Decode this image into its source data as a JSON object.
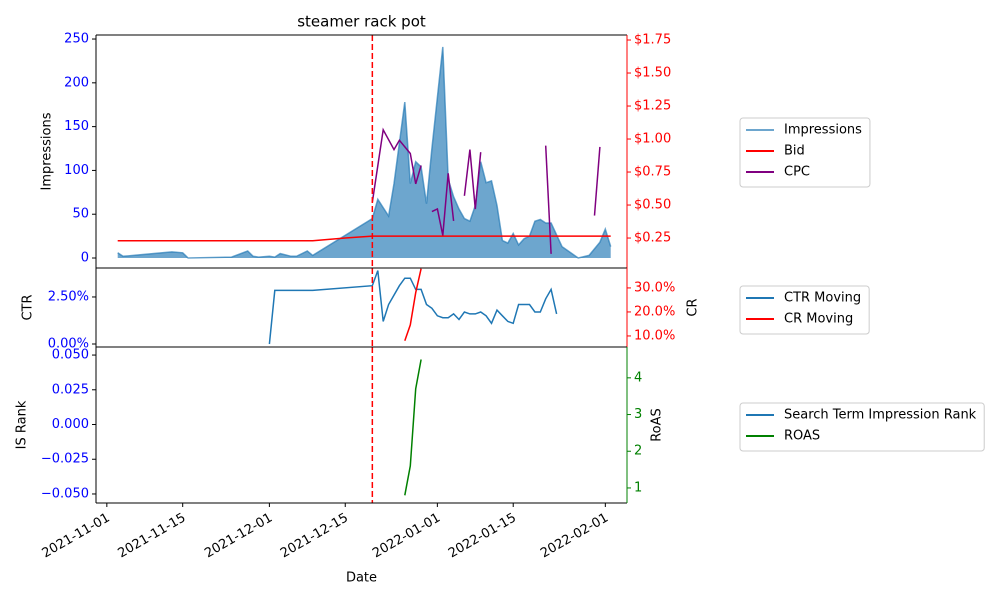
{
  "chart_data": [
    {
      "type": "line",
      "title": "steamer rack pot",
      "ylabel": "Impressions",
      "xlim": [
        "2021-10-30",
        "2022-02-05"
      ],
      "vline": "2021-12-20",
      "ylim": [
        -11.4,
        254.6
      ],
      "yticks": [
        0,
        50,
        100,
        150,
        200,
        250
      ],
      "ytick_color": "blue",
      "y2lim": [
        0.023,
        1.788
      ],
      "y2ticks": [
        {
          "value": 0.25,
          "label": "$0.25"
        },
        {
          "value": 0.5,
          "label": "$0.50"
        },
        {
          "value": 0.75,
          "label": "$0.75"
        },
        {
          "value": 1.0,
          "label": "$1.00"
        },
        {
          "value": 1.25,
          "label": "$1.25"
        },
        {
          "value": 1.5,
          "label": "$1.50"
        },
        {
          "value": 1.75,
          "label": "$1.75"
        }
      ],
      "y2tick_color": "red",
      "series": [
        {
          "name": "Impressions",
          "color": "#1f77b4",
          "fill": true,
          "x": [
            "2021-11-03",
            "2021-11-04",
            "2021-11-13",
            "2021-11-15",
            "2021-11-16",
            "2021-11-24",
            "2021-11-27",
            "2021-11-28",
            "2021-11-29",
            "2021-12-01",
            "2021-12-02",
            "2021-12-03",
            "2021-12-05",
            "2021-12-06",
            "2021-12-08",
            "2021-12-09",
            "2021-12-20",
            "2021-12-21",
            "2021-12-23",
            "2021-12-24",
            "2021-12-26",
            "2021-12-27",
            "2021-12-28",
            "2021-12-29",
            "2021-12-30",
            "2021-12-31",
            "2022-01-02",
            "2022-01-03",
            "2022-01-04",
            "2022-01-05",
            "2022-01-06",
            "2022-01-07",
            "2022-01-08",
            "2022-01-09",
            "2022-01-10",
            "2022-01-11",
            "2022-01-12",
            "2022-01-13",
            "2022-01-14",
            "2022-01-15",
            "2022-01-16",
            "2022-01-17",
            "2022-01-18",
            "2022-01-19",
            "2022-01-20",
            "2022-01-21",
            "2022-01-22",
            "2022-01-24",
            "2022-01-27",
            "2022-01-29",
            "2022-01-31",
            "2022-02-01",
            "2022-02-02"
          ],
          "values": [
            6,
            2,
            7,
            6,
            0,
            1,
            8,
            2,
            1,
            2,
            1,
            5,
            2,
            2,
            8,
            3,
            45,
            67,
            48,
            85,
            178,
            85,
            110,
            104,
            62,
            125,
            241,
            90,
            70,
            56,
            45,
            42,
            60,
            110,
            86,
            88,
            60,
            20,
            17,
            28,
            15,
            22,
            25,
            42,
            44,
            40,
            40,
            13,
            0,
            3,
            18,
            33,
            13
          ]
        },
        {
          "name": "Bid",
          "color": "red",
          "axis": "y2",
          "x": [
            "2021-11-03",
            "2021-12-09",
            "2021-12-15",
            "2021-12-20",
            "2022-02-02"
          ],
          "values": [
            0.23,
            0.23,
            0.25,
            0.265,
            0.265
          ]
        },
        {
          "name": "CPC",
          "color": "purple",
          "axis": "y2",
          "x": [
            "2021-12-20",
            "2021-12-22",
            "2021-12-24",
            "2021-12-25",
            "2021-12-27",
            "2021-12-28",
            "2021-12-29",
            "2021-12-30",
            "2021-12-31",
            "2022-01-01",
            "2022-01-02",
            "2022-01-03",
            "2022-01-04",
            "2022-01-05",
            "2022-01-06",
            "2022-01-07",
            "2022-01-08",
            "2022-01-09",
            "2022-01-10",
            "2022-01-21",
            "2022-01-22",
            "2022-01-23",
            "2022-01-30",
            "2022-01-31"
          ],
          "values": [
            0.52,
            1.07,
            0.92,
            0.99,
            0.89,
            0.66,
            0.8,
            null,
            0.45,
            0.47,
            0.27,
            0.74,
            0.38,
            null,
            0.57,
            0.92,
            0.47,
            0.9,
            null,
            0.95,
            0.13,
            null,
            0.42,
            0.94
          ]
        }
      ]
    },
    {
      "type": "line",
      "ylabel": "CTR",
      "y2label": "CR",
      "xlim": [
        "2021-10-30",
        "2022-02-05"
      ],
      "vline": "2021-12-20",
      "ylim": [
        -0.16,
        4.04
      ],
      "yticks": [
        {
          "value": 0,
          "label": "0.00%"
        },
        {
          "value": 2.5,
          "label": "2.50%"
        }
      ],
      "ytick_color": "blue",
      "y2lim": [
        5.4,
        38.3
      ],
      "y2ticks": [
        {
          "value": 10,
          "label": "10.0%"
        },
        {
          "value": 20,
          "label": "20.0%"
        },
        {
          "value": 30,
          "label": "30.0%"
        }
      ],
      "y2tick_color": "red",
      "series": [
        {
          "name": "CTR Moving",
          "color": "#1f77b4",
          "x": [
            "2021-12-01",
            "2021-12-02",
            "2021-12-09",
            "2021-12-20",
            "2021-12-21",
            "2021-12-22",
            "2021-12-23",
            "2021-12-25",
            "2021-12-26",
            "2021-12-27",
            "2021-12-28",
            "2021-12-29",
            "2021-12-30",
            "2021-12-31",
            "2022-01-01",
            "2022-01-02",
            "2022-01-03",
            "2022-01-04",
            "2022-01-05",
            "2022-01-06",
            "2022-01-07",
            "2022-01-08",
            "2022-01-09",
            "2022-01-10",
            "2022-01-11",
            "2022-01-12",
            "2022-01-13",
            "2022-01-14",
            "2022-01-15",
            "2022-01-16",
            "2022-01-17",
            "2022-01-18",
            "2022-01-19",
            "2022-01-20",
            "2022-01-21",
            "2022-01-22",
            "2022-01-23"
          ],
          "values": [
            0,
            2.85,
            2.85,
            3.1,
            3.9,
            1.2,
            2.1,
            3.1,
            3.5,
            3.5,
            2.9,
            2.9,
            2.1,
            1.9,
            1.5,
            1.4,
            1.4,
            1.6,
            1.3,
            1.7,
            1.6,
            1.6,
            1.7,
            1.5,
            1.1,
            1.8,
            1.5,
            1.2,
            1.1,
            2.1,
            2.1,
            2.1,
            1.7,
            1.7,
            2.4,
            2.9,
            1.6
          ]
        },
        {
          "name": "CR Moving",
          "color": "red",
          "axis": "y2",
          "x": [
            "2021-12-26",
            "2021-12-27",
            "2021-12-28",
            "2021-12-29"
          ],
          "values": [
            8,
            14.6,
            28,
            38
          ]
        }
      ]
    },
    {
      "type": "line",
      "ylabel": "IS Rank",
      "y2label": "RoAS",
      "xlabel": "Date",
      "xlim": [
        "2021-10-30",
        "2022-02-05"
      ],
      "vline": "2021-12-20",
      "xticks": [
        "2021-11-01",
        "2021-11-15",
        "2021-12-01",
        "2021-12-15",
        "2022-01-01",
        "2022-01-15",
        "2022-02-01"
      ],
      "ylim": [
        -0.0565,
        0.0558
      ],
      "yticks": [
        {
          "value": -0.05,
          "label": "−0.050"
        },
        {
          "value": -0.025,
          "label": "−0.025"
        },
        {
          "value": 0,
          "label": "0.000"
        },
        {
          "value": 0.025,
          "label": "0.025"
        },
        {
          "value": 0.05,
          "label": "0.050"
        }
      ],
      "ytick_color": "blue",
      "y2lim": [
        0.59,
        4.84
      ],
      "y2ticks": [
        1,
        2,
        3,
        4
      ],
      "y2tick_color": "green",
      "series": [
        {
          "name": "Search Term Impression Rank",
          "color": "#1f77b4",
          "x": [],
          "values": []
        },
        {
          "name": "ROAS",
          "color": "green",
          "axis": "y2",
          "x": [
            "2021-12-26",
            "2021-12-27",
            "2021-12-28",
            "2021-12-29"
          ],
          "values": [
            0.8,
            1.6,
            3.7,
            4.5
          ]
        }
      ]
    }
  ]
}
